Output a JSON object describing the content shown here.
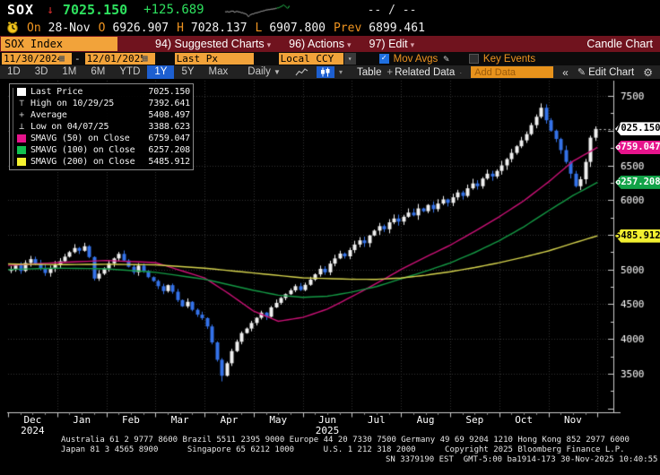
{
  "title_bar": {
    "ticker": "SOX",
    "tick_arrow": "↓",
    "last": "7025.150",
    "change": "+125.689",
    "range_placeholder": "-- / --"
  },
  "quote_bar": {
    "on_label": "On",
    "date": "28-Nov",
    "open_label": "O",
    "open": "6926.907",
    "high_label": "H",
    "high": "7028.137",
    "low_label": "L",
    "low": "6907.800",
    "prev_label": "Prev",
    "prev": "6899.461"
  },
  "menu_bar": {
    "security": "SOX Index",
    "items": [
      {
        "num": "94)",
        "label": "Suggested Charts"
      },
      {
        "num": "96)",
        "label": "Actions"
      },
      {
        "num": "97)",
        "label": "Edit"
      }
    ],
    "right_label": "Candle Chart"
  },
  "toolbar": {
    "date_from": "11/30/2024",
    "date_separator": "-",
    "date_to": "12/01/2025",
    "field": "Last Px",
    "currency": "Local CCY",
    "mov_avgs_label": "Mov Avgs",
    "key_events_label": "Key Events"
  },
  "period_bar": {
    "periods": [
      "1D",
      "3D",
      "1M",
      "6M",
      "YTD",
      "1Y",
      "5Y",
      "Max"
    ],
    "selected": "1Y",
    "frequency": "Daily",
    "table_label": "Table",
    "related_data_label": "Related Data",
    "add_data_placeholder": "Add Data",
    "collapse_glyph": "«",
    "edit_chart_label": "Edit Chart"
  },
  "legend": {
    "rows": [
      {
        "swatch": "square",
        "color": "#ffffff",
        "label": "Last Price",
        "value": "7025.150"
      },
      {
        "swatch": "glyph",
        "glyph": "⊤",
        "label": "High on 10/29/25",
        "value": "7392.641"
      },
      {
        "swatch": "glyph",
        "glyph": "+",
        "label": "Average",
        "value": "5408.497"
      },
      {
        "swatch": "glyph",
        "glyph": "⊥",
        "label": "Low on 04/07/25",
        "value": "3388.623"
      },
      {
        "swatch": "square",
        "color": "#e6148c",
        "label": "SMAVG (50)  on Close",
        "value": "6759.047"
      },
      {
        "swatch": "square",
        "color": "#12c150",
        "label": "SMAVG (100)  on Close",
        "value": "6257.208"
      },
      {
        "swatch": "square",
        "color": "#f5f230",
        "label": "SMAVG (200)  on Close",
        "value": "5485.912"
      }
    ]
  },
  "chart_data": {
    "type": "candlestick",
    "title": "SOX Index 1Y Daily Candle Chart",
    "x_axis": {
      "months": [
        "Dec",
        "Jan",
        "Feb",
        "Mar",
        "Apr",
        "May",
        "Jun",
        "Jul",
        "Aug",
        "Sep",
        "Oct",
        "Nov"
      ],
      "year_labels": [
        {
          "text": "2024",
          "month_index": 0
        },
        {
          "text": "2025",
          "month_index": 6
        }
      ]
    },
    "y_axis": {
      "ylim": [
        2970,
        7720
      ],
      "ticks": [
        3500,
        4000,
        4500,
        5000,
        5500,
        6000,
        6500,
        7000,
        7500
      ],
      "minor_step": 250
    },
    "grid": true,
    "legend_position": "top-left",
    "first_open": 4980,
    "closes": [
      5005,
      5060,
      4980,
      5095,
      5150,
      5085,
      5020,
      4950,
      5010,
      5070,
      5120,
      5185,
      5250,
      5310,
      5270,
      5335,
      5180,
      4870,
      4940,
      5015,
      5090,
      5160,
      5225,
      5130,
      5040,
      4960,
      5055,
      4980,
      4890,
      4835,
      4760,
      4690,
      4775,
      4680,
      4560,
      4470,
      4535,
      4420,
      4350,
      4300,
      4180,
      3950,
      3700,
      3470,
      3650,
      3825,
      3960,
      4085,
      4150,
      4230,
      4305,
      4380,
      4320,
      4455,
      4520,
      4590,
      4645,
      4700,
      4760,
      4705,
      4780,
      4855,
      4930,
      5010,
      4960,
      5085,
      5160,
      5230,
      5190,
      5280,
      5360,
      5420,
      5380,
      5490,
      5560,
      5625,
      5580,
      5680,
      5735,
      5690,
      5760,
      5820,
      5780,
      5880,
      5840,
      5930,
      5870,
      5950,
      6010,
      5960,
      6040,
      6110,
      6060,
      6170,
      6240,
      6200,
      6310,
      6380,
      6340,
      6420,
      6500,
      6590,
      6680,
      6775,
      6860,
      6950,
      7080,
      7200,
      7330,
      7150,
      7000,
      6880,
      6720,
      6550,
      6380,
      6200,
      6300,
      6550,
      6899,
      7025.15
    ],
    "key_points": {
      "last": 7025.15,
      "high": {
        "label": "High on 10/29/25",
        "value": 7392.641,
        "index": 108
      },
      "average": {
        "label": "Average",
        "value": 5408.497
      },
      "low": {
        "label": "Low on 04/07/25",
        "value": 3388.623,
        "index": 43
      }
    },
    "moving_averages": [
      {
        "name": "SMAVG (50) on Close",
        "color": "#cc1177",
        "value": 6759.047,
        "path": [
          [
            0,
            5060
          ],
          [
            1,
            5100
          ],
          [
            2,
            5130
          ],
          [
            3,
            5100
          ],
          [
            4,
            4880
          ],
          [
            4.5,
            4650
          ],
          [
            5,
            4400
          ],
          [
            5.5,
            4255
          ],
          [
            6,
            4310
          ],
          [
            6.5,
            4430
          ],
          [
            7,
            4610
          ],
          [
            7.5,
            4800
          ],
          [
            8,
            5000
          ],
          [
            8.5,
            5180
          ],
          [
            9,
            5350
          ],
          [
            9.5,
            5550
          ],
          [
            10,
            5760
          ],
          [
            10.5,
            5990
          ],
          [
            11,
            6260
          ],
          [
            11.5,
            6560
          ],
          [
            12,
            6759
          ]
        ]
      },
      {
        "name": "SMAVG (100) on Close",
        "color": "#149a45",
        "value": 6257.208,
        "path": [
          [
            0,
            5000
          ],
          [
            1,
            5020
          ],
          [
            2,
            5010
          ],
          [
            3,
            4960
          ],
          [
            4,
            4860
          ],
          [
            5,
            4700
          ],
          [
            5.5,
            4630
          ],
          [
            6,
            4600
          ],
          [
            6.5,
            4615
          ],
          [
            7,
            4675
          ],
          [
            7.5,
            4755
          ],
          [
            8,
            4865
          ],
          [
            8.5,
            4975
          ],
          [
            9,
            5095
          ],
          [
            9.5,
            5245
          ],
          [
            10,
            5415
          ],
          [
            10.5,
            5615
          ],
          [
            11,
            5845
          ],
          [
            11.5,
            6065
          ],
          [
            12,
            6257
          ]
        ]
      },
      {
        "name": "SMAVG (200) on Close",
        "color": "#d6d44e",
        "value": 5485.912,
        "path": [
          [
            0,
            5080
          ],
          [
            1,
            5070
          ],
          [
            2,
            5075
          ],
          [
            3,
            5068
          ],
          [
            4,
            5020
          ],
          [
            5,
            4950
          ],
          [
            6,
            4880
          ],
          [
            7,
            4860
          ],
          [
            7.5,
            4858
          ],
          [
            8,
            4878
          ],
          [
            8.5,
            4918
          ],
          [
            9,
            4968
          ],
          [
            9.5,
            5028
          ],
          [
            10,
            5098
          ],
          [
            10.5,
            5178
          ],
          [
            11,
            5268
          ],
          [
            11.5,
            5378
          ],
          [
            12,
            5486
          ]
        ]
      }
    ],
    "axis_badges": [
      {
        "value": 7025.15,
        "text": "7025.150",
        "bg": "#ffffff",
        "fg": "#000000"
      },
      {
        "value": 6759.047,
        "text": "6759.047",
        "bg": "#e6148c",
        "fg": "#ffffff"
      },
      {
        "value": 6257.208,
        "text": "6257.208",
        "bg": "#12a348",
        "fg": "#ffffff"
      },
      {
        "value": 5485.912,
        "text": "5485.912",
        "bg": "#f2ef30",
        "fg": "#000000"
      }
    ],
    "colors": {
      "up": "#f0f0f0",
      "down": "#3472e8",
      "grid": "#343434",
      "axis": "#cccccc",
      "last_price_line": "#dddddd"
    }
  },
  "footer": {
    "lines": [
      "Australia 61 2 9777 8600 Brazil 5511 2395 9000 Europe 44 20 7330 7500 Germany 49 69 9204 1210 Hong Kong 852 2977 6000",
      "Japan 81 3 4565 8900      Singapore 65 6212 1000      U.S. 1 212 318 2000      Copyright 2025 Bloomberg Finance L.P.",
      "SN 3379190 EST  GMT-5:00 ba1914-173 30-Nov-2025 10:40:55"
    ]
  }
}
